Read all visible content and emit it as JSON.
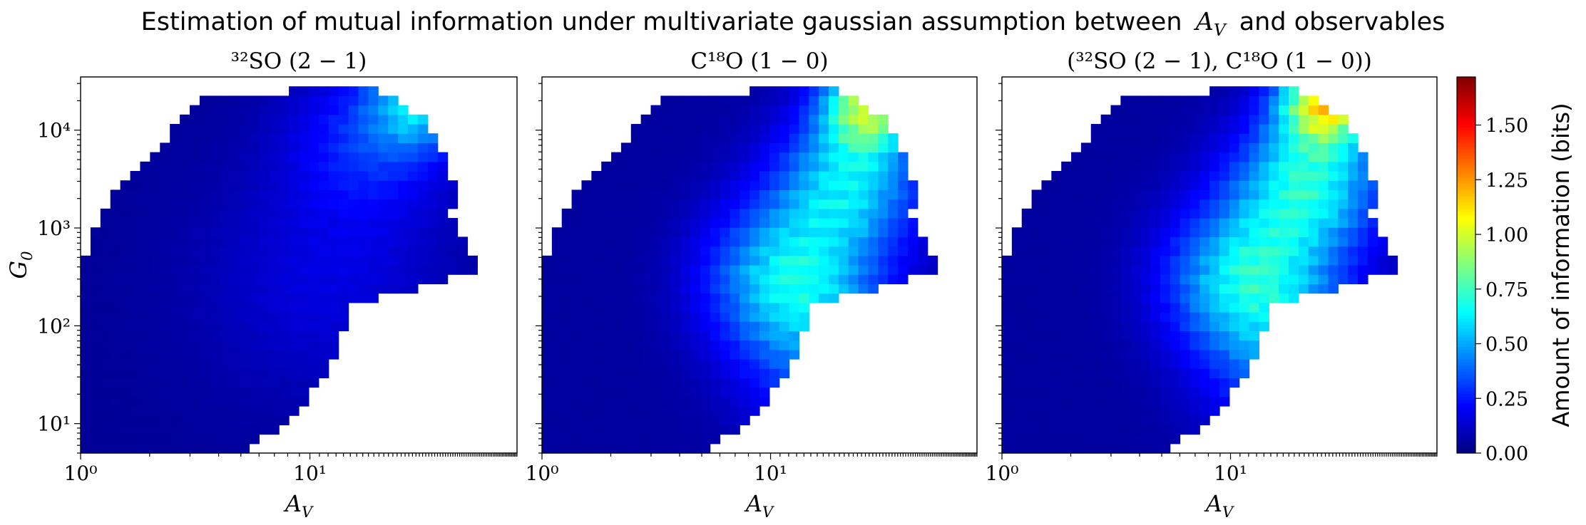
{
  "figure": {
    "title_prefix": "Estimation of mutual information under multivariate gaussian assumption between",
    "title_var": "A",
    "title_var_sub": "V",
    "title_suffix": "and observables"
  },
  "colorbar": {
    "label": "Amount of information (bits)",
    "colormap": "jet",
    "vmin": 0.0,
    "vmax": 1.72,
    "ticks": [
      0.0,
      0.25,
      0.5,
      0.75,
      1.0,
      1.25,
      1.5
    ],
    "tick_labels": [
      "0.00",
      "0.25",
      "0.50",
      "0.75",
      "1.00",
      "1.25",
      "1.50"
    ]
  },
  "chart_data": [
    {
      "type": "heatmap",
      "title": "³²SO (2 − 1)",
      "xlabel": "A_V",
      "ylabel": "G_0",
      "xscale": "log",
      "yscale": "log",
      "xlim": [
        1,
        80
      ],
      "ylim": [
        5,
        35000
      ],
      "xticks": [
        {
          "value": 1,
          "base": "10",
          "exp": "0"
        },
        {
          "value": 10,
          "base": "10",
          "exp": "1"
        }
      ],
      "yticks": [
        {
          "value": 10,
          "base": "10",
          "exp": "1"
        },
        {
          "value": 100,
          "base": "10",
          "exp": "2"
        },
        {
          "value": 1000,
          "base": "10",
          "exp": "3"
        },
        {
          "value": 10000,
          "base": "10",
          "exp": "4"
        }
      ],
      "grid": false,
      "peaks": [
        {
          "A_V": 30,
          "G0": 20000,
          "value": 0.45,
          "spread": 0.22
        },
        {
          "A_V": 18,
          "G0": 8000,
          "value": 0.22,
          "spread": 0.35
        },
        {
          "A_V": 12,
          "G0": 300,
          "value": 0.12,
          "spread": 0.55
        }
      ],
      "base_value": 0.04
    },
    {
      "type": "heatmap",
      "title": "C¹⁸O (1 − 0)",
      "xlabel": "A_V",
      "ylabel": "",
      "xscale": "log",
      "yscale": "log",
      "xlim": [
        1,
        80
      ],
      "ylim": [
        5,
        35000
      ],
      "xticks": [
        {
          "value": 1,
          "base": "10",
          "exp": "0"
        },
        {
          "value": 10,
          "base": "10",
          "exp": "1"
        }
      ],
      "yticks": [],
      "grid": false,
      "peaks": [
        {
          "A_V": 27,
          "G0": 18000,
          "value": 0.82,
          "spread": 0.2
        },
        {
          "A_V": 22,
          "G0": 3000,
          "value": 0.5,
          "spread": 0.32
        },
        {
          "A_V": 12,
          "G0": 300,
          "value": 0.55,
          "spread": 0.35
        },
        {
          "A_V": 20,
          "G0": 30,
          "value": 0.28,
          "spread": 0.38
        }
      ],
      "base_value": 0.05
    },
    {
      "type": "heatmap",
      "title": "(³²SO (2 − 1), C¹⁸O (1 − 0))",
      "xlabel": "A_V",
      "ylabel": "",
      "xscale": "log",
      "yscale": "log",
      "xlim": [
        1,
        80
      ],
      "ylim": [
        5,
        35000
      ],
      "xticks": [
        {
          "value": 1,
          "base": "10",
          "exp": "0"
        },
        {
          "value": 10,
          "base": "10",
          "exp": "1"
        }
      ],
      "yticks": [],
      "grid": false,
      "peaks": [
        {
          "A_V": 26,
          "G0": 20000,
          "value": 0.95,
          "spread": 0.2
        },
        {
          "A_V": 22,
          "G0": 3000,
          "value": 0.58,
          "spread": 0.32
        },
        {
          "A_V": 12,
          "G0": 300,
          "value": 0.58,
          "spread": 0.35
        },
        {
          "A_V": 20,
          "G0": 30,
          "value": 0.3,
          "spread": 0.38
        }
      ],
      "base_value": 0.05
    }
  ]
}
